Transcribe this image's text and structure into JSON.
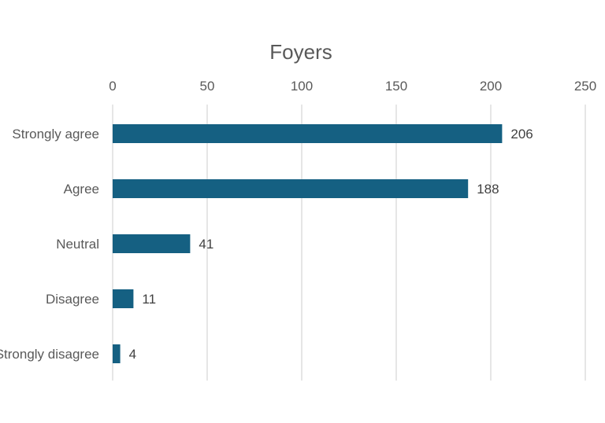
{
  "chart_data": {
    "type": "bar",
    "orientation": "horizontal",
    "title": "Foyers",
    "categories": [
      "Strongly agree",
      "Agree",
      "Neutral",
      "Disagree",
      "Strongly disagree"
    ],
    "values": [
      206,
      188,
      41,
      11,
      4
    ],
    "xlim": [
      0,
      250
    ],
    "ticks": [
      0,
      50,
      100,
      150,
      200,
      250
    ],
    "tick_labels": [
      "0",
      "50",
      "100",
      "150",
      "200",
      "250"
    ],
    "axis_position": "top",
    "grid": true,
    "legend": "none",
    "bar_color": "#156082",
    "grid_color": "#d9d9d9",
    "text_color": "#595959"
  }
}
